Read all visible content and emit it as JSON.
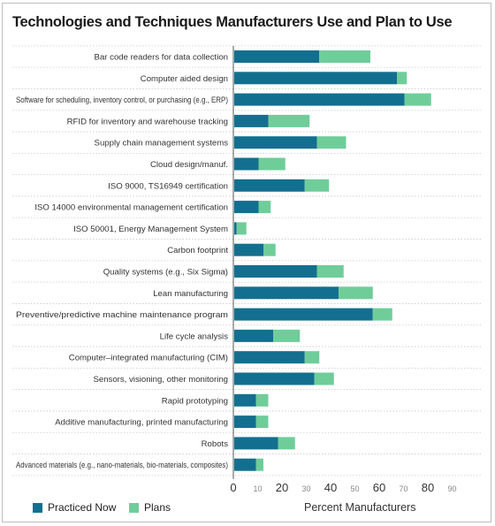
{
  "title": "Technologies and Techniques Manufacturers Use and Plan to Use",
  "colors": {
    "practiced": "#136f8f",
    "plans": "#6fcd9a"
  },
  "chart_data": {
    "type": "bar",
    "orientation": "horizontal",
    "stacked": true,
    "title": "Technologies and Techniques Manufacturers Use and Plan to Use",
    "xlabel": "Percent Manufacturers",
    "ylabel": "",
    "xlim": [
      0,
      90
    ],
    "xticks": [
      0,
      10,
      20,
      30,
      40,
      50,
      60,
      70,
      80,
      90
    ],
    "legend_position": "bottom-left",
    "grid": "dotted row separators",
    "categories": [
      "Bar code readers for data collection",
      "Computer aided design",
      "Software for scheduling, inventory control, or purchasing (e.g., ERP)",
      "RFID for inventory and warehouse tracking",
      "Supply chain management systems",
      "Cloud design/manuf.",
      "ISO 9000, TS16949 certification",
      "ISO 14000 environmental management certification",
      "ISO 50001, Energy Management System",
      "Carbon footprint",
      "Quality systems (e.g., Six Sigma)",
      "Lean manufacturing",
      "Preventive/predictive machine maintenance program",
      "Life cycle analysis",
      "Computer–integrated manufacturing (CIM)",
      "Sensors, visioning, other monitoring",
      "Rapid prototyping",
      "Additive manufacturing, printed manufacturing",
      "Robots",
      "Advanced materials (e.g., nano-materials, bio-materials, composites)"
    ],
    "series": [
      {
        "name": "Practiced Now",
        "values": [
          35,
          67,
          70,
          14,
          34,
          10,
          29,
          10,
          1,
          12,
          34,
          43,
          57,
          16,
          29,
          33,
          9,
          9,
          18,
          9
        ]
      },
      {
        "name": "Plans",
        "values": [
          21,
          4,
          11,
          17,
          12,
          11,
          10,
          5,
          4,
          5,
          11,
          14,
          8,
          11,
          6,
          8,
          5,
          5,
          7,
          3
        ]
      }
    ]
  },
  "legend": {
    "practiced": "Practiced Now",
    "plans": "Plans"
  }
}
